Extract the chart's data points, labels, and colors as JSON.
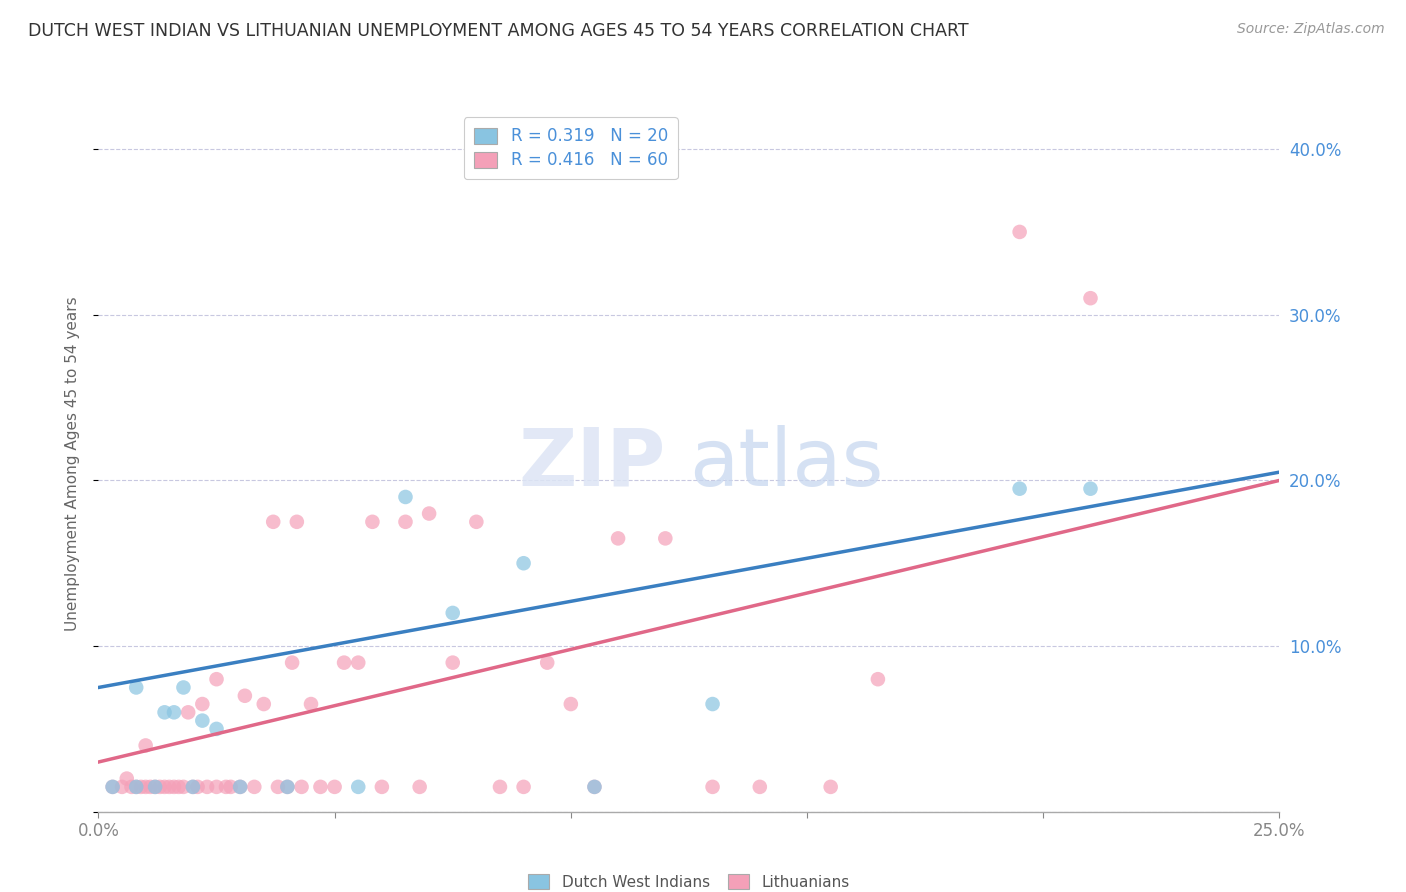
{
  "title": "DUTCH WEST INDIAN VS LITHUANIAN UNEMPLOYMENT AMONG AGES 45 TO 54 YEARS CORRELATION CHART",
  "source": "Source: ZipAtlas.com",
  "ylabel": "Unemployment Among Ages 45 to 54 years",
  "xlim": [
    0.0,
    0.25
  ],
  "ylim": [
    0.0,
    0.42
  ],
  "xticks": [
    0.0,
    0.05,
    0.1,
    0.15,
    0.2,
    0.25
  ],
  "yticks": [
    0.0,
    0.1,
    0.2,
    0.3,
    0.4
  ],
  "xtick_labels": [
    "0.0%",
    "",
    "",
    "",
    "",
    "25.0%"
  ],
  "ytick_labels_right": [
    "",
    "10.0%",
    "20.0%",
    "30.0%",
    "40.0%"
  ],
  "color_blue": "#89c4e1",
  "color_pink": "#f4a0b8",
  "color_blue_line": "#3a7fc1",
  "color_pink_line": "#e06888",
  "legend_text_color": "#4a90d9",
  "background_color": "#ffffff",
  "grid_color": "#c8c8e0",
  "dutch_west_x": [
    0.003,
    0.008,
    0.008,
    0.012,
    0.014,
    0.016,
    0.018,
    0.02,
    0.022,
    0.025,
    0.03,
    0.04,
    0.055,
    0.065,
    0.075,
    0.09,
    0.105,
    0.13,
    0.195,
    0.21
  ],
  "dutch_west_y": [
    0.015,
    0.015,
    0.075,
    0.015,
    0.06,
    0.06,
    0.075,
    0.015,
    0.055,
    0.05,
    0.015,
    0.015,
    0.015,
    0.19,
    0.12,
    0.15,
    0.015,
    0.065,
    0.195,
    0.195
  ],
  "lithuanian_x": [
    0.003,
    0.005,
    0.006,
    0.007,
    0.008,
    0.009,
    0.01,
    0.01,
    0.011,
    0.012,
    0.013,
    0.014,
    0.015,
    0.016,
    0.017,
    0.018,
    0.019,
    0.02,
    0.021,
    0.022,
    0.023,
    0.025,
    0.025,
    0.027,
    0.028,
    0.03,
    0.031,
    0.033,
    0.035,
    0.037,
    0.038,
    0.04,
    0.041,
    0.042,
    0.043,
    0.045,
    0.047,
    0.05,
    0.052,
    0.055,
    0.058,
    0.06,
    0.065,
    0.068,
    0.07,
    0.075,
    0.08,
    0.085,
    0.09,
    0.095,
    0.1,
    0.105,
    0.11,
    0.12,
    0.13,
    0.14,
    0.155,
    0.165,
    0.195,
    0.21
  ],
  "lithuanian_y": [
    0.015,
    0.015,
    0.02,
    0.015,
    0.015,
    0.015,
    0.015,
    0.04,
    0.015,
    0.015,
    0.015,
    0.015,
    0.015,
    0.015,
    0.015,
    0.015,
    0.06,
    0.015,
    0.015,
    0.065,
    0.015,
    0.015,
    0.08,
    0.015,
    0.015,
    0.015,
    0.07,
    0.015,
    0.065,
    0.175,
    0.015,
    0.015,
    0.09,
    0.175,
    0.015,
    0.065,
    0.015,
    0.015,
    0.09,
    0.09,
    0.175,
    0.015,
    0.175,
    0.015,
    0.18,
    0.09,
    0.175,
    0.015,
    0.015,
    0.09,
    0.065,
    0.015,
    0.165,
    0.165,
    0.015,
    0.015,
    0.015,
    0.08,
    0.35,
    0.31
  ],
  "blue_intercept": 0.075,
  "blue_slope": 0.52,
  "pink_intercept": 0.03,
  "pink_slope": 0.68
}
